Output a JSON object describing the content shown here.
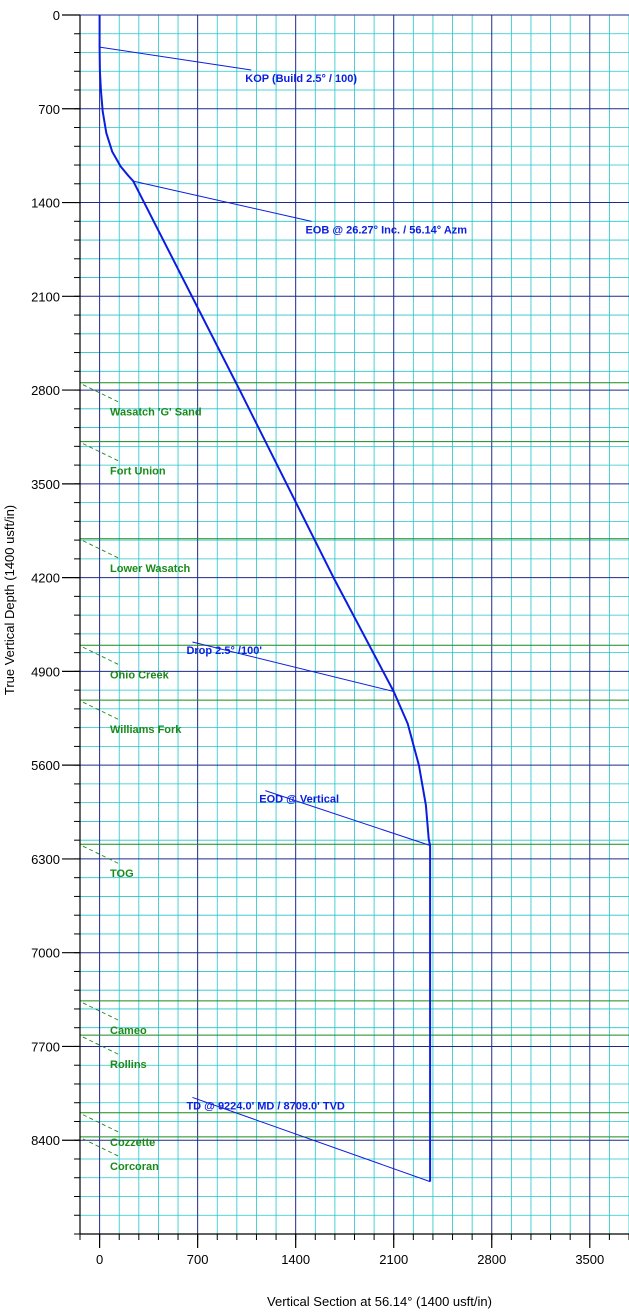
{
  "chart_data": {
    "type": "line",
    "xlabel": "Vertical Section at 56.14° (1400 usft/in)",
    "ylabel": "True Vertical Depth (1400 usft/in)",
    "xlim": [
      -140,
      3780
    ],
    "ylim": [
      0,
      9100
    ],
    "x_ticks": [
      0,
      700,
      1400,
      2100,
      2800,
      3500
    ],
    "y_ticks": [
      0,
      700,
      1400,
      2100,
      2800,
      3500,
      4200,
      4900,
      5600,
      6300,
      7000,
      7700,
      8400
    ],
    "grid": true,
    "colors": {
      "trajectory": "#0b1ee0",
      "formation": "#1a8a1a",
      "major_grid": "#1e2a8a",
      "minor_grid": "#22c5cc"
    },
    "series": [
      {
        "values": [
          {
            "x": 0,
            "y": 0
          },
          {
            "x": 0,
            "y": 240
          },
          {
            "x": 2,
            "y": 420
          },
          {
            "x": 9,
            "y": 560
          },
          {
            "x": 22,
            "y": 720
          },
          {
            "x": 48,
            "y": 880
          },
          {
            "x": 90,
            "y": 1020
          },
          {
            "x": 150,
            "y": 1130
          },
          {
            "x": 205,
            "y": 1200
          },
          {
            "x": 240,
            "y": 1240
          },
          {
            "x": 1000,
            "y": 2800
          },
          {
            "x": 1670,
            "y": 4200
          },
          {
            "x": 2100,
            "y": 5050
          },
          {
            "x": 2200,
            "y": 5290
          },
          {
            "x": 2280,
            "y": 5600
          },
          {
            "x": 2330,
            "y": 5900
          },
          {
            "x": 2350,
            "y": 6150
          },
          {
            "x": 2360,
            "y": 6200
          },
          {
            "x": 2360,
            "y": 8709
          }
        ]
      }
    ],
    "annotations": [
      {
        "text": "KOP (Build 2.5° / 100)",
        "point": {
          "x": 0,
          "y": 240
        },
        "label_at": {
          "x": 1040,
          "y": 500
        }
      },
      {
        "text": "EOB @ 26.27° Inc. / 56.14° Azm",
        "point": {
          "x": 240,
          "y": 1240
        },
        "label_at": {
          "x": 1470,
          "y": 1630
        }
      },
      {
        "text": "Drop 2.5° /100'",
        "point": {
          "x": 2100,
          "y": 5050
        },
        "label_at": {
          "x": 620,
          "y": 4770
        }
      },
      {
        "text": "EOD @ Vertical",
        "point": {
          "x": 2360,
          "y": 6200
        },
        "label_at": {
          "x": 1140,
          "y": 5880
        }
      },
      {
        "text": "TD @ 9224.0' MD / 8709.0' TVD",
        "point": {
          "x": 2360,
          "y": 8709
        },
        "label_at": {
          "x": 620,
          "y": 8170
        }
      }
    ],
    "formations": [
      {
        "name": "Wasatch 'G' Sand",
        "tvd": 2745
      },
      {
        "name": "Fort Union",
        "tvd": 3185
      },
      {
        "name": "Lower Wasatch",
        "tvd": 3910
      },
      {
        "name": "Ohio Creek",
        "tvd": 4705
      },
      {
        "name": "Williams Fork",
        "tvd": 5115
      },
      {
        "name": "TOG",
        "tvd": 6190
      },
      {
        "name": "Cameo",
        "tvd": 7360
      },
      {
        "name": "Rollins",
        "tvd": 7615
      },
      {
        "name": "Cozzette",
        "tvd": 8195
      },
      {
        "name": "Corcoran",
        "tvd": 8375
      }
    ]
  }
}
